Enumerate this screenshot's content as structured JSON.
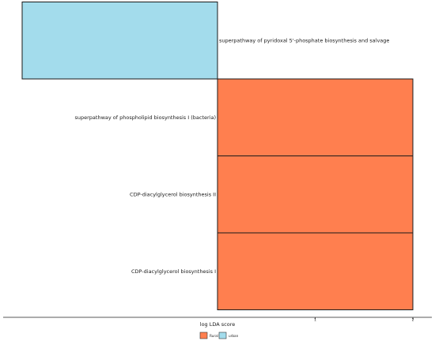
{
  "chart_data": {
    "type": "bar",
    "orientation": "horizontal",
    "title": "",
    "xlabel": "log LDA score",
    "ylabel": "",
    "xlim": [
      -2,
      2
    ],
    "x_ticks": [
      "1",
      "2"
    ],
    "grid": false,
    "legend_position": "bottom-center",
    "categories": [
      "superpathway of pyridoxal 5'-phosphate biosynthesis and salvage",
      "superpathway of phospholipid biosynthesis I (bacteria)",
      "CDP-diacylglycerol biosynthesis II",
      "CDP-diacylglycerol biosynthesis I"
    ],
    "values": [
      -2.0,
      2.0,
      2.0,
      2.0
    ],
    "groups": [
      "urban",
      "Rural",
      "Rural",
      "Rural"
    ],
    "series": [
      {
        "name": "Rural",
        "color": "#ff7f4f"
      },
      {
        "name": "urban",
        "color": "#a3dcec"
      }
    ]
  }
}
